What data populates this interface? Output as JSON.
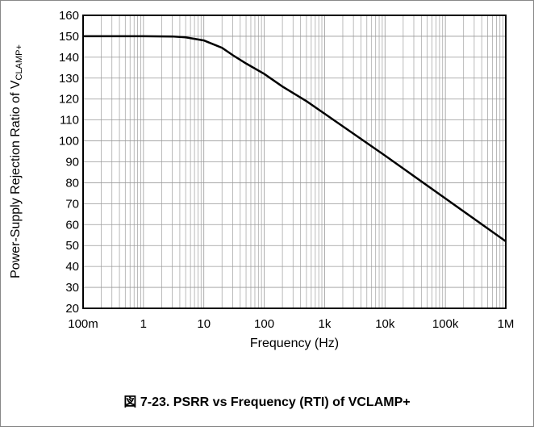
{
  "chart_data": {
    "type": "line",
    "caption": "図 7-23. PSRR vs Frequency (RTI) of VCLAMP+",
    "xlabel": "Frequency (Hz)",
    "ylabel": "Power-Supply Rejection Ratio of V",
    "ylabel_subscript": "CLAMP+",
    "xscale": "log",
    "grid": true,
    "minor_grid": true,
    "color": "#000000",
    "x": [
      0.1,
      1,
      3,
      5,
      10,
      20,
      30,
      50,
      100,
      200,
      500,
      1000,
      10000,
      100000,
      1000000
    ],
    "values": [
      150,
      150,
      149.9,
      149.5,
      148,
      144.5,
      141,
      137,
      132,
      126,
      119,
      113,
      93,
      72.5,
      52
    ],
    "xlim": [
      0.1,
      1000000
    ],
    "xticks": [
      {
        "value": 0.1,
        "label": "100m"
      },
      1,
      10,
      100,
      {
        "value": 1000,
        "label": "1k"
      },
      {
        "value": 10000,
        "label": "10k"
      },
      {
        "value": 100000,
        "label": "100k"
      },
      {
        "value": 1000000,
        "label": "1M"
      }
    ],
    "ylim": [
      20,
      160
    ],
    "yticks": [
      20,
      30,
      40,
      50,
      60,
      70,
      80,
      90,
      100,
      110,
      120,
      130,
      140,
      150,
      160
    ]
  }
}
